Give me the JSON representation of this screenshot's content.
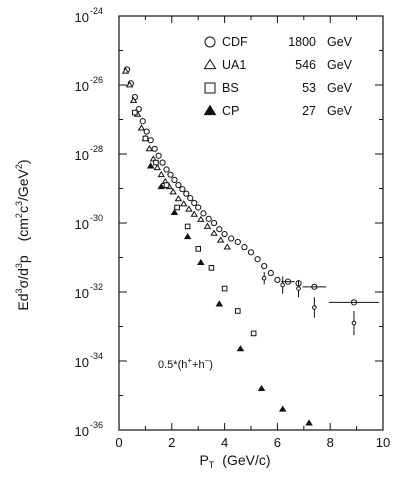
{
  "chart_data": {
    "type": "scatter",
    "xlabel": "P_T (GeV/c)",
    "ylabel": "Ed³σ/d³p (cm²c³/GeV²)",
    "xlim": [
      0,
      10
    ],
    "ylim_log10": [
      -36,
      -24
    ],
    "y_scale": "log",
    "grid": false,
    "legend_position": "top-right",
    "x_ticks": [
      0,
      2,
      4,
      6,
      8,
      10
    ],
    "x_tick_labels": [
      "0",
      "2",
      "4",
      "6",
      "8",
      "10"
    ],
    "y_ticks_log10": [
      -24,
      -26,
      -28,
      -30,
      -32,
      -34,
      -36
    ],
    "y_tick_bases": [
      "10",
      "10",
      "10",
      "10",
      "10",
      "10",
      "10"
    ],
    "y_tick_exponents": [
      "-24",
      "-26",
      "-28",
      "-30",
      "-32",
      "-34",
      "-36"
    ],
    "annotation": "0.5*(h⁺+h⁻)",
    "series": [
      {
        "name": "CDF",
        "energy": "1800",
        "unit": "GeV",
        "marker": "open-circle",
        "points": [
          [
            0.3,
            -25.55
          ],
          [
            0.45,
            -25.95
          ],
          [
            0.6,
            -26.35
          ],
          [
            0.75,
            -26.7
          ],
          [
            0.9,
            -27.05
          ],
          [
            1.05,
            -27.35
          ],
          [
            1.2,
            -27.6
          ],
          [
            1.35,
            -27.85
          ],
          [
            1.5,
            -28.05
          ],
          [
            1.65,
            -28.25
          ],
          [
            1.8,
            -28.45
          ],
          [
            1.95,
            -28.6
          ],
          [
            2.1,
            -28.75
          ],
          [
            2.25,
            -28.9
          ],
          [
            2.4,
            -29.02
          ],
          [
            2.55,
            -29.15
          ],
          [
            2.7,
            -29.28
          ],
          [
            2.85,
            -29.42
          ],
          [
            3.0,
            -29.55
          ],
          [
            3.2,
            -29.72
          ],
          [
            3.4,
            -29.88
          ],
          [
            3.6,
            -30.0
          ],
          [
            3.8,
            -30.18
          ],
          [
            4.0,
            -30.32
          ],
          [
            4.25,
            -30.45
          ],
          [
            4.5,
            -30.55
          ],
          [
            4.75,
            -30.7
          ],
          [
            5.0,
            -30.85
          ],
          [
            5.25,
            -31.05
          ],
          [
            5.5,
            -31.25
          ],
          [
            5.75,
            -31.45
          ],
          [
            6.0,
            -31.65
          ],
          [
            6.4,
            -31.7
          ],
          [
            6.8,
            -31.75
          ],
          [
            7.4,
            -31.85
          ],
          [
            8.9,
            -32.3
          ]
        ],
        "error_points": [
          [
            5.5,
            -31.6,
            0.18
          ],
          [
            6.2,
            -31.8,
            0.25
          ],
          [
            6.8,
            -31.9,
            0.25
          ],
          [
            7.4,
            -32.45,
            0.3
          ],
          [
            8.9,
            -32.9,
            0.35
          ]
        ],
        "x_error_points": [
          [
            6.4,
            -31.7,
            0.25
          ],
          [
            7.4,
            -31.85,
            0.45
          ],
          [
            8.9,
            -32.3,
            0.95
          ]
        ]
      },
      {
        "name": "UA1",
        "energy": "546",
        "unit": "GeV",
        "marker": "open-triangle",
        "points": [
          [
            0.25,
            -25.6
          ],
          [
            0.4,
            -26.0
          ],
          [
            0.55,
            -26.45
          ],
          [
            0.7,
            -26.85
          ],
          [
            0.85,
            -27.25
          ],
          [
            1.0,
            -27.55
          ],
          [
            1.15,
            -27.85
          ],
          [
            1.3,
            -28.15
          ],
          [
            1.45,
            -28.4
          ],
          [
            1.6,
            -28.6
          ],
          [
            1.75,
            -28.8
          ],
          [
            1.9,
            -28.95
          ],
          [
            2.05,
            -29.1
          ],
          [
            2.25,
            -29.3
          ],
          [
            2.45,
            -29.45
          ],
          [
            2.65,
            -29.6
          ],
          [
            2.85,
            -29.75
          ],
          [
            3.1,
            -29.9
          ],
          [
            3.35,
            -30.1
          ],
          [
            3.6,
            -30.3
          ],
          [
            3.85,
            -30.5
          ],
          [
            4.1,
            -30.7
          ]
        ]
      },
      {
        "name": "BS",
        "energy": "53",
        "unit": "GeV",
        "marker": "open-square",
        "points": [
          [
            0.6,
            -26.8
          ],
          [
            1.0,
            -27.55
          ],
          [
            1.4,
            -28.25
          ],
          [
            1.8,
            -28.9
          ],
          [
            2.2,
            -29.55
          ],
          [
            2.6,
            -30.1
          ],
          [
            3.0,
            -30.75
          ],
          [
            3.5,
            -31.3
          ],
          [
            4.0,
            -31.9
          ],
          [
            4.5,
            -32.55
          ],
          [
            5.1,
            -33.2
          ]
        ]
      },
      {
        "name": "CP",
        "energy": "27",
        "unit": "GeV",
        "marker": "filled-triangle",
        "points": [
          [
            1.2,
            -28.35
          ],
          [
            1.6,
            -28.95
          ],
          [
            2.1,
            -29.7
          ],
          [
            2.6,
            -30.4
          ],
          [
            3.1,
            -31.15
          ],
          [
            3.8,
            -32.35
          ],
          [
            4.6,
            -33.65
          ],
          [
            5.4,
            -34.8
          ],
          [
            6.2,
            -35.4
          ],
          [
            7.2,
            -35.8
          ]
        ]
      }
    ]
  }
}
